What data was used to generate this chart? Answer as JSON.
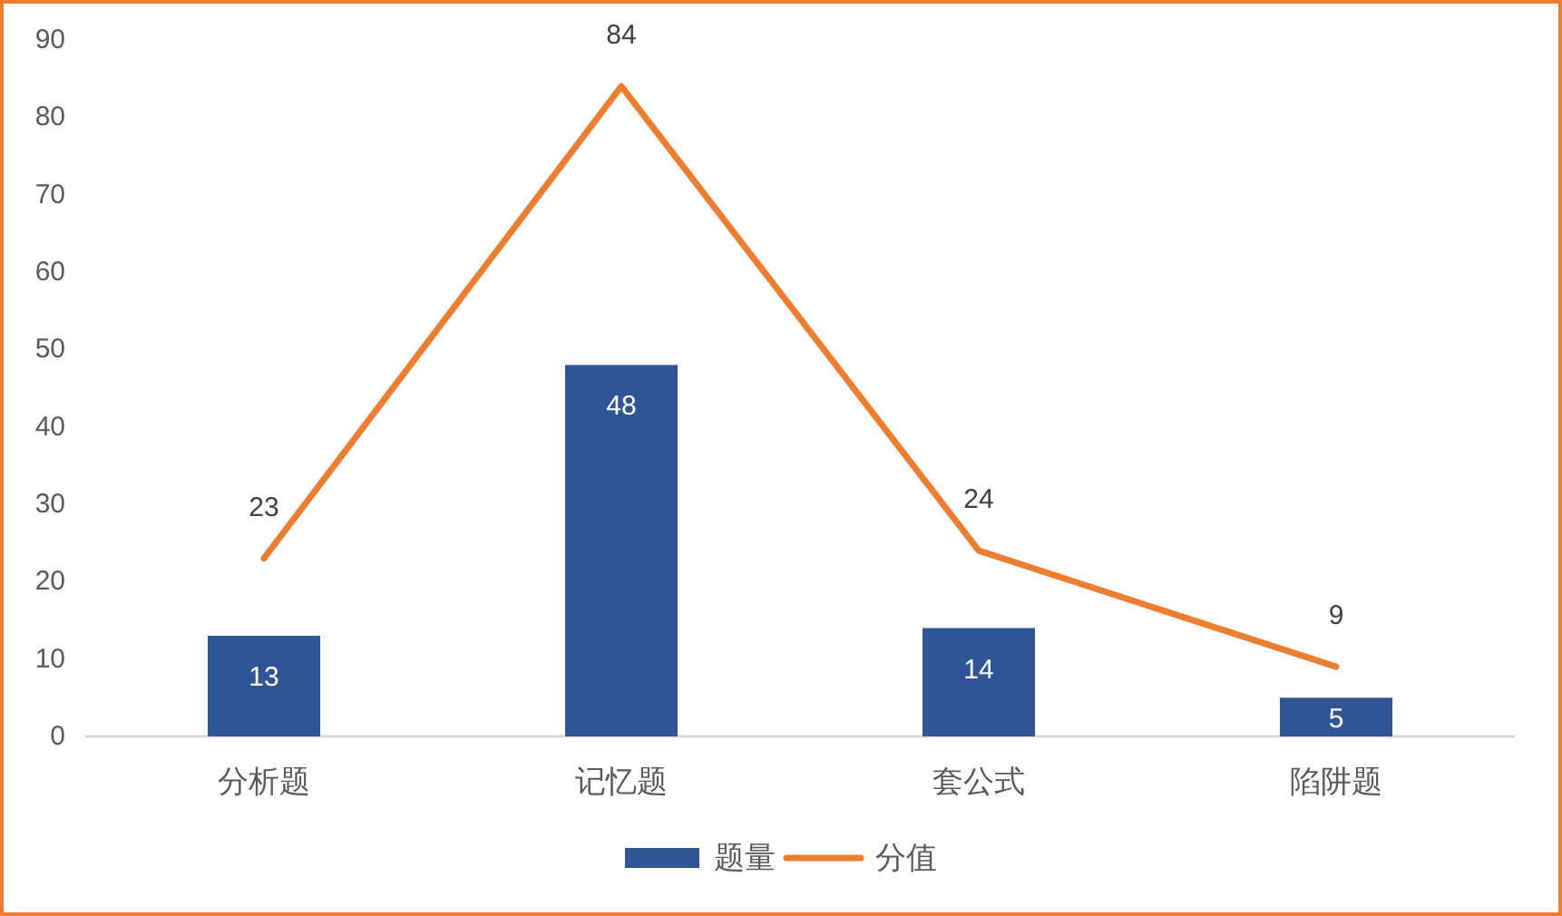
{
  "chart_data": {
    "type": "bar",
    "categories": [
      "分析题",
      "记忆题",
      "套公式",
      "陷阱题"
    ],
    "series": [
      {
        "name": "题量",
        "color": "#2f5597",
        "values": [
          13,
          48,
          14,
          5
        ]
      },
      {
        "name": "分值",
        "type": "line",
        "color": "#ed7d31",
        "values": [
          23,
          84,
          24,
          9
        ]
      }
    ],
    "ylim": [
      0,
      90
    ],
    "yticks": [
      0,
      10,
      20,
      30,
      40,
      50,
      60,
      70,
      80,
      90
    ],
    "legend": "bottom",
    "data_labels": true
  }
}
